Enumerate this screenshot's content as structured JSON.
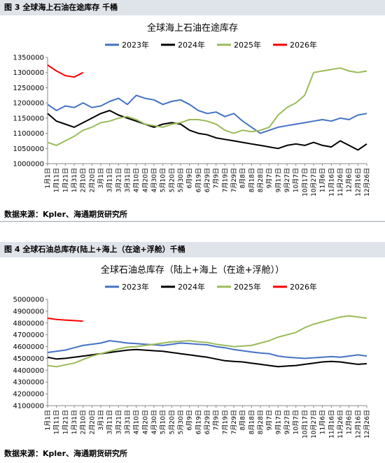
{
  "figures": [
    {
      "header": "图 3 全球海上石油在途库存 千桶",
      "source": "数据来源：Kpler、海通期货研究所"
    },
    {
      "header": "图 4 全球石油总库存(陆上+海上（在途+浮舱）千桶",
      "source": "数据来源：Kpler、海通期货研究所"
    }
  ],
  "chart_data": [
    {
      "type": "line",
      "title": "全球海上石油在途库存",
      "xlabel": "",
      "ylabel": "",
      "x": [
        "1月1日",
        "1月11日",
        "1月21日",
        "1月31日",
        "2月10日",
        "2月20日",
        "3月1日",
        "3月11日",
        "3月21日",
        "3月31日",
        "4月10日",
        "4月20日",
        "4月30日",
        "5月10日",
        "5月20日",
        "5月30日",
        "6月9日",
        "6月19日",
        "6月29日",
        "7月9日",
        "7月19日",
        "7月29日",
        "8月8日",
        "8月18日",
        "8月28日",
        "9月7日",
        "9月17日",
        "9月27日",
        "10月7日",
        "10月17日",
        "10月27日",
        "11月6日",
        "11月16日",
        "11月26日",
        "12月6日",
        "12月16日",
        "12月26日"
      ],
      "ylim": [
        1000000,
        1350000
      ],
      "yticks": [
        "1000000",
        "1050000",
        "1100000",
        "1150000",
        "1200000",
        "1250000",
        "1300000",
        "1350000"
      ],
      "legend_position": "top",
      "series": [
        {
          "name": "2023年",
          "color": "#4472c4",
          "values": [
            1195000,
            1175000,
            1190000,
            1185000,
            1200000,
            1185000,
            1190000,
            1205000,
            1215000,
            1195000,
            1225000,
            1215000,
            1210000,
            1195000,
            1205000,
            1210000,
            1195000,
            1175000,
            1165000,
            1170000,
            1155000,
            1165000,
            1140000,
            1120000,
            1100000,
            1110000,
            1120000,
            1125000,
            1130000,
            1135000,
            1140000,
            1145000,
            1140000,
            1150000,
            1145000,
            1160000,
            1165000
          ]
        },
        {
          "name": "2024年",
          "color": "#000000",
          "values": [
            1165000,
            1140000,
            1130000,
            1120000,
            1135000,
            1150000,
            1165000,
            1175000,
            1160000,
            1150000,
            1140000,
            1130000,
            1120000,
            1130000,
            1135000,
            1130000,
            1110000,
            1100000,
            1095000,
            1085000,
            1080000,
            1075000,
            1070000,
            1065000,
            1060000,
            1055000,
            1050000,
            1060000,
            1065000,
            1060000,
            1070000,
            1060000,
            1055000,
            1075000,
            1060000,
            1045000,
            1065000
          ]
        },
        {
          "name": "2025年",
          "color": "#9bbb59",
          "values": [
            1070000,
            1060000,
            1075000,
            1090000,
            1110000,
            1120000,
            1135000,
            1140000,
            1150000,
            1155000,
            1145000,
            1130000,
            1125000,
            1120000,
            1130000,
            1135000,
            1145000,
            1145000,
            1140000,
            1130000,
            1110000,
            1100000,
            1110000,
            1105000,
            1110000,
            1120000,
            1160000,
            1185000,
            1200000,
            1225000,
            1300000,
            1305000,
            1310000,
            1315000,
            1305000,
            1300000,
            1305000
          ]
        },
        {
          "name": "2026年",
          "color": "#ff0000",
          "values": [
            1325000,
            1305000,
            1290000,
            1285000,
            1300000,
            null,
            null,
            null,
            null,
            null,
            null,
            null,
            null,
            null,
            null,
            null,
            null,
            null,
            null,
            null,
            null,
            null,
            null,
            null,
            null,
            null,
            null,
            null,
            null,
            null,
            null,
            null,
            null,
            null,
            null,
            null,
            null
          ]
        }
      ]
    },
    {
      "type": "line",
      "title": "全球石油总库存（陆上+海上（在途+浮舱））",
      "xlabel": "",
      "ylabel": "",
      "x": [
        "1月1日",
        "1月11日",
        "1月21日",
        "1月31日",
        "2月10日",
        "2月20日",
        "3月1日",
        "3月11日",
        "3月21日",
        "3月31日",
        "4月10日",
        "4月20日",
        "4月30日",
        "5月10日",
        "5月20日",
        "5月30日",
        "6月9日",
        "6月19日",
        "6月29日",
        "7月9日",
        "7月19日",
        "7月29日",
        "8月8日",
        "8月18日",
        "8月28日",
        "9月7日",
        "9月17日",
        "9月27日",
        "10月7日",
        "10月17日",
        "10月27日",
        "11月6日",
        "11月16日",
        "11月26日",
        "12月6日",
        "12月16日",
        "12月26日"
      ],
      "ylim": [
        4100000,
        5000000
      ],
      "yticks": [
        "4100000",
        "4200000",
        "4300000",
        "4400000",
        "4500000",
        "4600000",
        "4700000",
        "4800000",
        "4900000",
        "5000000"
      ],
      "legend_position": "top",
      "series": [
        {
          "name": "2023年",
          "color": "#4472c4",
          "values": [
            4550000,
            4560000,
            4570000,
            4590000,
            4610000,
            4620000,
            4630000,
            4650000,
            4640000,
            4630000,
            4625000,
            4620000,
            4615000,
            4610000,
            4620000,
            4630000,
            4625000,
            4620000,
            4615000,
            4600000,
            4590000,
            4575000,
            4565000,
            4555000,
            4545000,
            4540000,
            4520000,
            4510000,
            4505000,
            4500000,
            4505000,
            4510000,
            4515000,
            4510000,
            4520000,
            4530000,
            4520000
          ]
        },
        {
          "name": "2024年",
          "color": "#000000",
          "values": [
            4510000,
            4495000,
            4500000,
            4510000,
            4520000,
            4530000,
            4540000,
            4550000,
            4560000,
            4570000,
            4575000,
            4570000,
            4565000,
            4560000,
            4550000,
            4540000,
            4530000,
            4520000,
            4510000,
            4495000,
            4480000,
            4475000,
            4470000,
            4460000,
            4450000,
            4440000,
            4430000,
            4435000,
            4440000,
            4450000,
            4460000,
            4470000,
            4475000,
            4470000,
            4460000,
            4450000,
            4455000
          ]
        },
        {
          "name": "2025年",
          "color": "#9bbb59",
          "values": [
            4440000,
            4430000,
            4445000,
            4460000,
            4490000,
            4520000,
            4540000,
            4560000,
            4580000,
            4595000,
            4600000,
            4610000,
            4620000,
            4630000,
            4640000,
            4645000,
            4650000,
            4640000,
            4635000,
            4620000,
            4610000,
            4600000,
            4605000,
            4610000,
            4630000,
            4650000,
            4680000,
            4700000,
            4720000,
            4760000,
            4790000,
            4810000,
            4830000,
            4850000,
            4860000,
            4850000,
            4840000
          ]
        },
        {
          "name": "2026年",
          "color": "#ff0000",
          "values": [
            4840000,
            4830000,
            4825000,
            4820000,
            4815000,
            null,
            null,
            null,
            null,
            null,
            null,
            null,
            null,
            null,
            null,
            null,
            null,
            null,
            null,
            null,
            null,
            null,
            null,
            null,
            null,
            null,
            null,
            null,
            null,
            null,
            null,
            null,
            null,
            null,
            null,
            null,
            null
          ]
        }
      ]
    }
  ]
}
